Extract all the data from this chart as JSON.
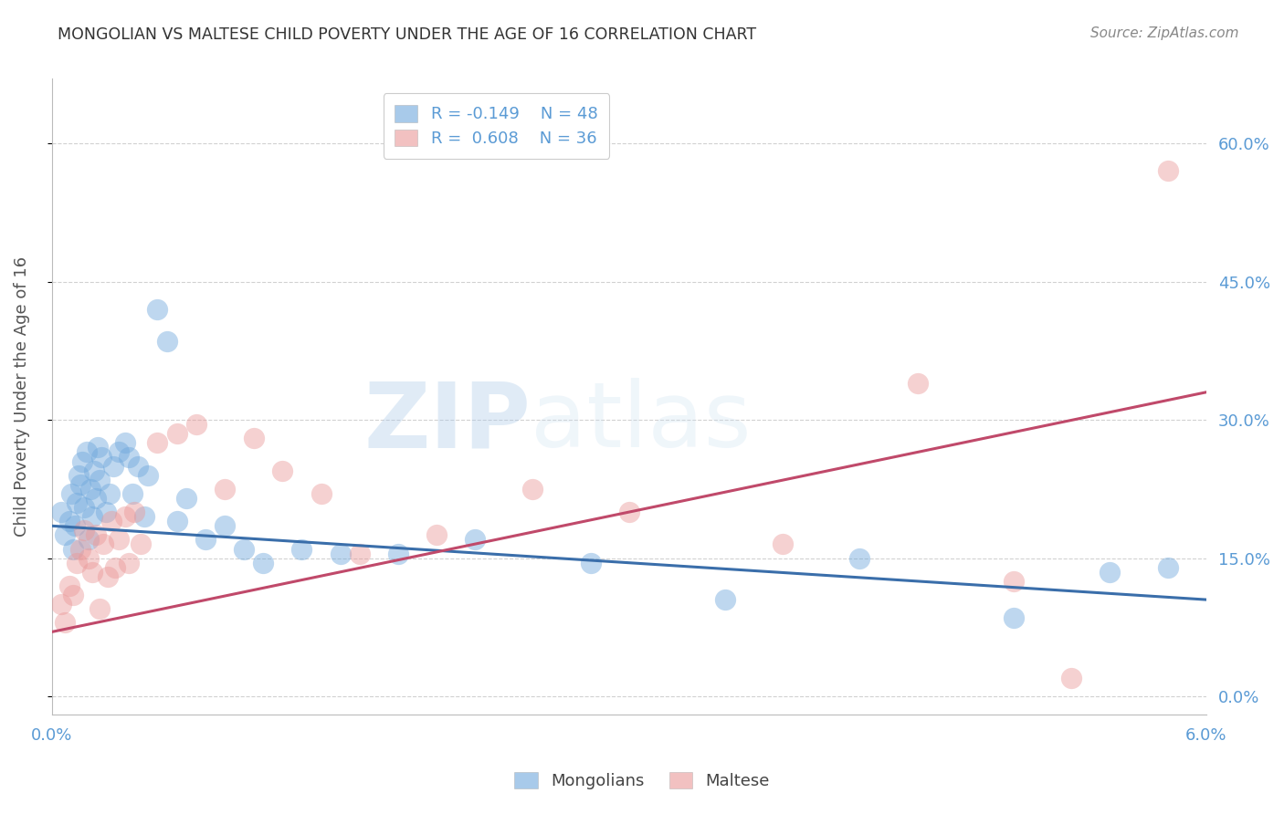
{
  "title": "MONGOLIAN VS MALTESE CHILD POVERTY UNDER THE AGE OF 16 CORRELATION CHART",
  "source": "Source: ZipAtlas.com",
  "ylabel": "Child Poverty Under the Age of 16",
  "xmin": 0.0,
  "xmax": 6.0,
  "ymin": -2.0,
  "ymax": 67.0,
  "mongolian_color": "#6fa8dc",
  "maltese_color": "#ea9999",
  "mongolian_line_color": "#3a6eaa",
  "maltese_line_color": "#c0496a",
  "mongolian_R": -0.149,
  "mongolian_N": 48,
  "maltese_R": 0.608,
  "maltese_N": 36,
  "mongolian_line_y0": 18.5,
  "mongolian_line_y1": 10.5,
  "maltese_line_y0": 7.0,
  "maltese_line_y1": 33.0,
  "right_ytick_vals": [
    0,
    15,
    30,
    45,
    60
  ],
  "right_ytick_labels": [
    "0.0%",
    "15.0%",
    "30.0%",
    "45.0%",
    "60.0%"
  ],
  "watermark_zip": "ZIP",
  "watermark_atlas": "atlas",
  "background_color": "#ffffff",
  "grid_color": "#cccccc",
  "title_color": "#333333",
  "tick_color": "#5b9bd5",
  "mongolian_scatter_x": [
    0.05,
    0.07,
    0.09,
    0.1,
    0.11,
    0.12,
    0.13,
    0.14,
    0.15,
    0.16,
    0.17,
    0.18,
    0.19,
    0.2,
    0.21,
    0.22,
    0.23,
    0.24,
    0.25,
    0.26,
    0.28,
    0.3,
    0.32,
    0.35,
    0.38,
    0.4,
    0.42,
    0.45,
    0.48,
    0.5,
    0.55,
    0.6,
    0.65,
    0.7,
    0.8,
    0.9,
    1.0,
    1.1,
    1.3,
    1.5,
    1.8,
    2.2,
    2.8,
    3.5,
    4.2,
    5.0,
    5.5,
    5.8
  ],
  "mongolian_scatter_y": [
    20.0,
    17.5,
    19.0,
    22.0,
    16.0,
    18.5,
    21.0,
    24.0,
    23.0,
    25.5,
    20.5,
    26.5,
    17.0,
    22.5,
    19.5,
    24.5,
    21.5,
    27.0,
    23.5,
    26.0,
    20.0,
    22.0,
    25.0,
    26.5,
    27.5,
    26.0,
    22.0,
    25.0,
    19.5,
    24.0,
    42.0,
    38.5,
    19.0,
    21.5,
    17.0,
    18.5,
    16.0,
    14.5,
    16.0,
    15.5,
    15.5,
    17.0,
    14.5,
    10.5,
    15.0,
    8.5,
    13.5,
    14.0
  ],
  "maltese_scatter_x": [
    0.05,
    0.07,
    0.09,
    0.11,
    0.13,
    0.15,
    0.17,
    0.19,
    0.21,
    0.23,
    0.25,
    0.27,
    0.29,
    0.31,
    0.33,
    0.35,
    0.38,
    0.4,
    0.43,
    0.46,
    0.55,
    0.65,
    0.75,
    0.9,
    1.05,
    1.2,
    1.4,
    1.6,
    2.0,
    2.5,
    3.0,
    3.8,
    4.5,
    5.0,
    5.3,
    5.8
  ],
  "maltese_scatter_y": [
    10.0,
    8.0,
    12.0,
    11.0,
    14.5,
    16.0,
    18.0,
    15.0,
    13.5,
    17.5,
    9.5,
    16.5,
    13.0,
    19.0,
    14.0,
    17.0,
    19.5,
    14.5,
    20.0,
    16.5,
    27.5,
    28.5,
    29.5,
    22.5,
    28.0,
    24.5,
    22.0,
    15.5,
    17.5,
    22.5,
    20.0,
    16.5,
    34.0,
    12.5,
    2.0,
    57.0
  ]
}
